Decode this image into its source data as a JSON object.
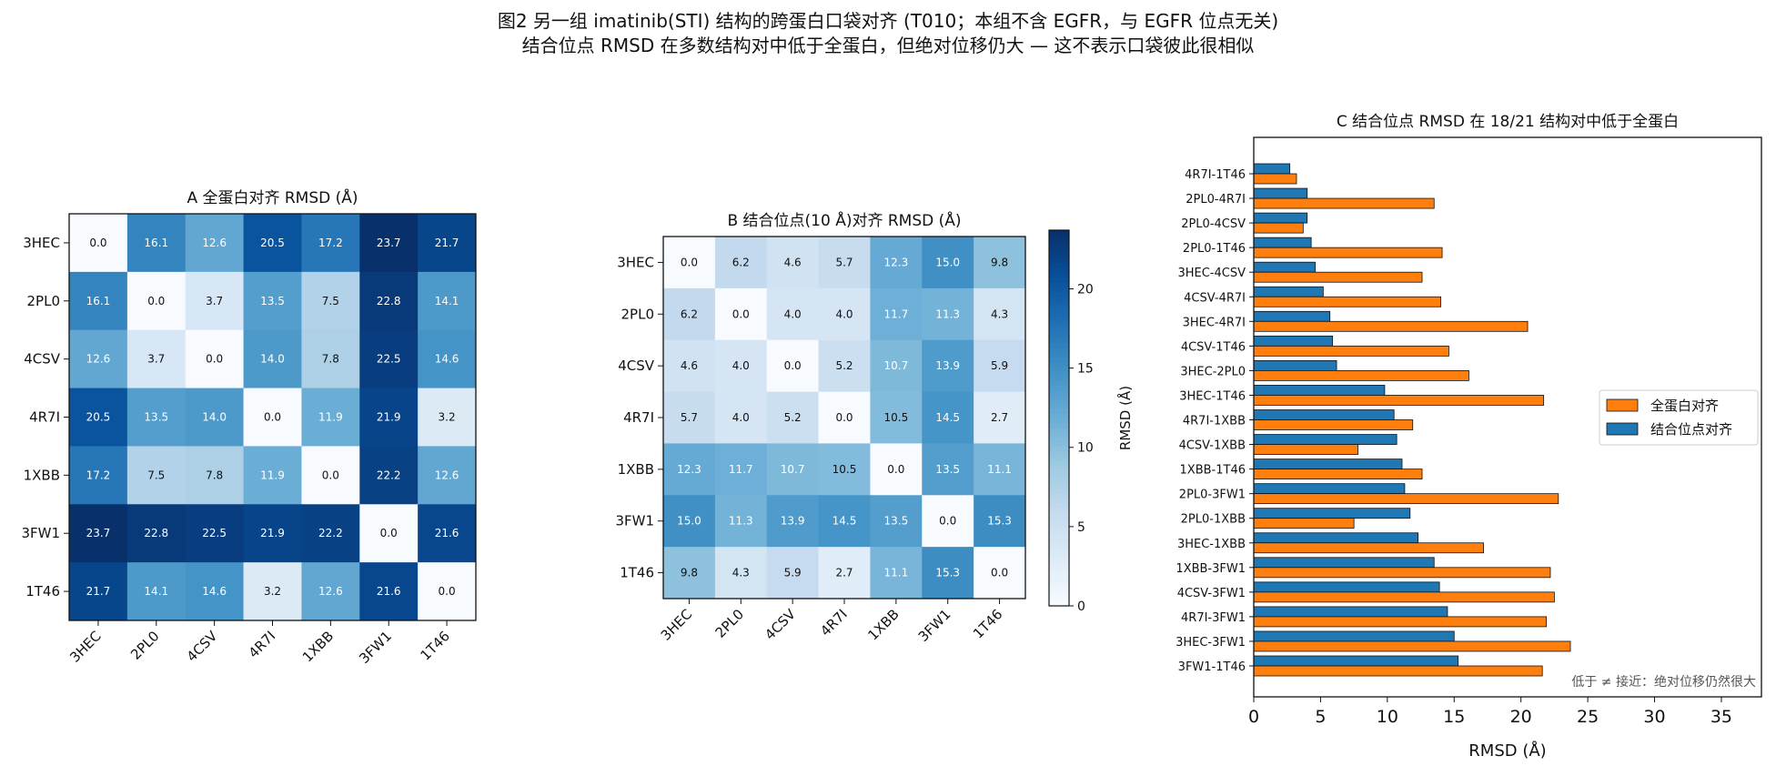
{
  "figure": {
    "title_line1": "图2  另一组 imatinib(STI) 结构的跨蛋白口袋对齐 (T010；本组不含 EGFR，与 EGFR 位点无关)",
    "title_line2": "结合位点 RMSD 在多数结构对中低于全蛋白，但绝对位移仍大 — 这不表示口袋彼此很相似"
  },
  "colors": {
    "cmap_low": "#f7fbff",
    "cmap_high": "#08306b",
    "whole_protein": "#ff7f0e",
    "binding_site": "#1f77b4"
  },
  "chart_data": [
    {
      "type": "heatmap",
      "title": "A  全蛋白对齐 RMSD (Å)",
      "labels": [
        "3HEC",
        "2PL0",
        "4CSV",
        "4R7I",
        "1XBB",
        "3FW1",
        "1T46"
      ],
      "values": [
        [
          0.0,
          16.1,
          12.6,
          20.5,
          17.2,
          23.7,
          21.7
        ],
        [
          16.1,
          0.0,
          3.7,
          13.5,
          7.5,
          22.8,
          14.1
        ],
        [
          12.6,
          3.7,
          0.0,
          14.0,
          7.8,
          22.5,
          14.6
        ],
        [
          20.5,
          13.5,
          14.0,
          0.0,
          11.9,
          21.9,
          3.2
        ],
        [
          17.2,
          7.5,
          7.8,
          11.9,
          0.0,
          22.2,
          12.6
        ],
        [
          23.7,
          22.8,
          22.5,
          21.9,
          22.2,
          0.0,
          21.6
        ],
        [
          21.7,
          14.1,
          14.6,
          3.2,
          12.6,
          21.6,
          0.0
        ]
      ],
      "vmin": 0,
      "vmax": 23.7
    },
    {
      "type": "heatmap",
      "title": "B  结合位点(10 Å)对齐 RMSD (Å)",
      "labels": [
        "3HEC",
        "2PL0",
        "4CSV",
        "4R7I",
        "1XBB",
        "3FW1",
        "1T46"
      ],
      "values": [
        [
          0.0,
          6.2,
          4.6,
          5.7,
          12.3,
          15.0,
          9.8
        ],
        [
          6.2,
          0.0,
          4.0,
          4.0,
          11.7,
          11.3,
          4.3
        ],
        [
          4.6,
          4.0,
          0.0,
          5.2,
          10.7,
          13.9,
          5.9
        ],
        [
          5.7,
          4.0,
          5.2,
          0.0,
          10.5,
          14.5,
          2.7
        ],
        [
          12.3,
          11.7,
          10.7,
          10.5,
          0.0,
          13.5,
          11.1
        ],
        [
          15.0,
          11.3,
          13.9,
          14.5,
          13.5,
          0.0,
          15.3
        ],
        [
          9.8,
          4.3,
          5.9,
          2.7,
          11.1,
          15.3,
          0.0
        ]
      ],
      "vmin": 0,
      "vmax": 23.7,
      "colorbar": {
        "label": "RMSD (Å)",
        "ticks": [
          0,
          5,
          10,
          15,
          20
        ]
      }
    },
    {
      "type": "bar",
      "orientation": "horizontal",
      "title": "C  结合位点 RMSD 在 18/21 结构对中低于全蛋白",
      "xlabel": "RMSD (Å)",
      "xlim": [
        0,
        38
      ],
      "xticks": [
        0,
        5,
        10,
        15,
        20,
        25,
        30,
        35
      ],
      "categories": [
        "4R7I-1T46",
        "2PL0-4R7I",
        "2PL0-4CSV",
        "2PL0-1T46",
        "3HEC-4CSV",
        "4CSV-4R7I",
        "3HEC-4R7I",
        "4CSV-1T46",
        "3HEC-2PL0",
        "3HEC-1T46",
        "4R7I-1XBB",
        "4CSV-1XBB",
        "1XBB-1T46",
        "2PL0-3FW1",
        "2PL0-1XBB",
        "3HEC-1XBB",
        "1XBB-3FW1",
        "4CSV-3FW1",
        "4R7I-3FW1",
        "3HEC-3FW1",
        "3FW1-1T46"
      ],
      "series": [
        {
          "name": "全蛋白对齐",
          "values": [
            3.2,
            13.5,
            3.7,
            14.1,
            12.6,
            14.0,
            20.5,
            14.6,
            16.1,
            21.7,
            11.9,
            7.8,
            12.6,
            22.8,
            7.5,
            17.2,
            22.2,
            22.5,
            21.9,
            23.7,
            21.6
          ]
        },
        {
          "name": "结合位点对齐",
          "values": [
            2.7,
            4.0,
            4.0,
            4.3,
            4.6,
            5.2,
            5.7,
            5.9,
            6.2,
            9.8,
            10.5,
            10.7,
            11.1,
            11.3,
            11.7,
            12.3,
            13.5,
            13.9,
            14.5,
            15.0,
            15.3
          ]
        }
      ],
      "legend": "center-right",
      "annotation": "低于 ≠ 接近：绝对位移仍然很大"
    }
  ]
}
